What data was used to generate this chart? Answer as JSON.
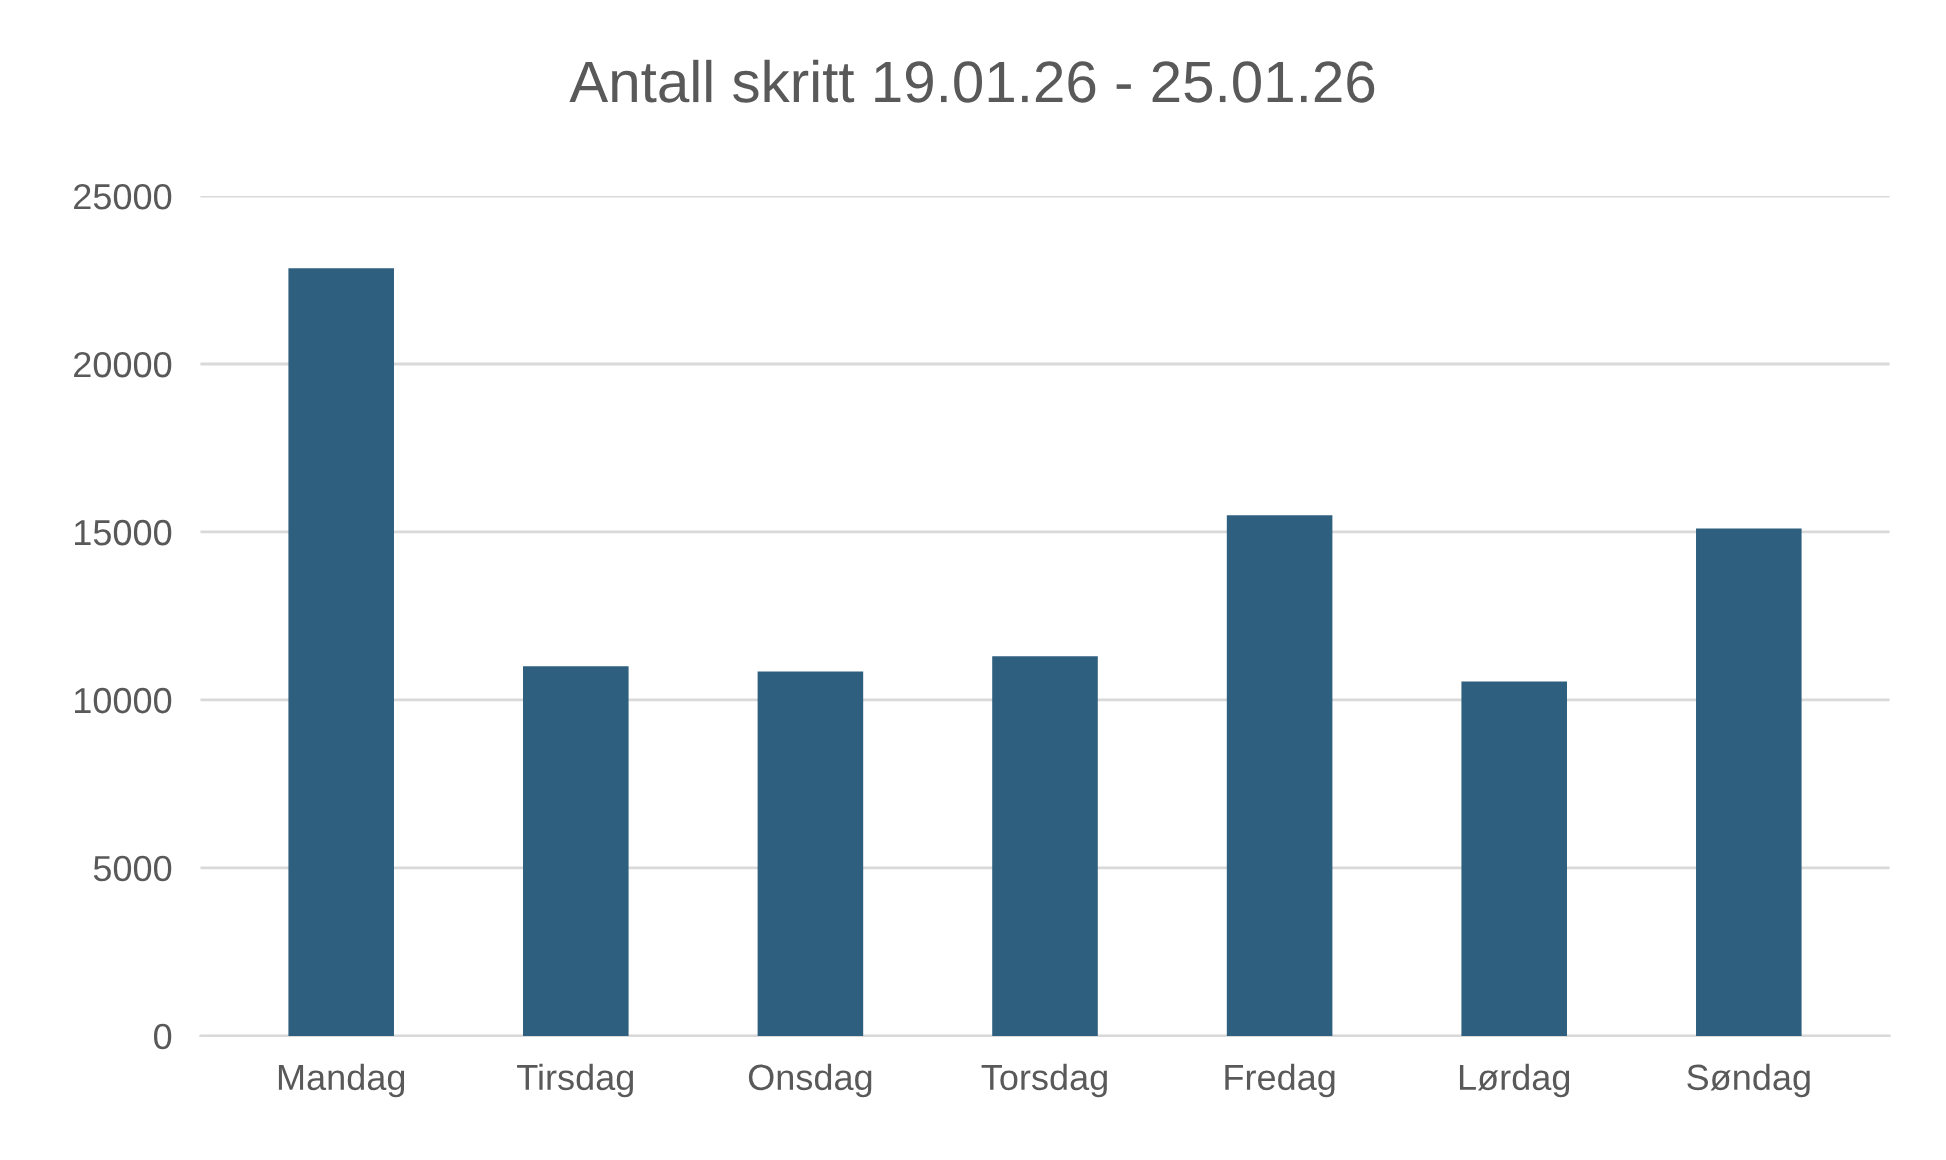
{
  "chart_data": {
    "type": "bar",
    "title": "Antall skritt 19.01.26 - 25.01.26",
    "categories": [
      "Mandag",
      "Tirsdag",
      "Onsdag",
      "Torsdag",
      "Fredag",
      "Lørdag",
      "Søndag"
    ],
    "values": [
      22850,
      11000,
      10850,
      11300,
      15500,
      10550,
      15100
    ],
    "color": "#2e5f7f",
    "ylim": [
      0,
      25000
    ],
    "yticks": [
      0,
      5000,
      10000,
      15000,
      20000,
      25000
    ],
    "grid": "y"
  }
}
